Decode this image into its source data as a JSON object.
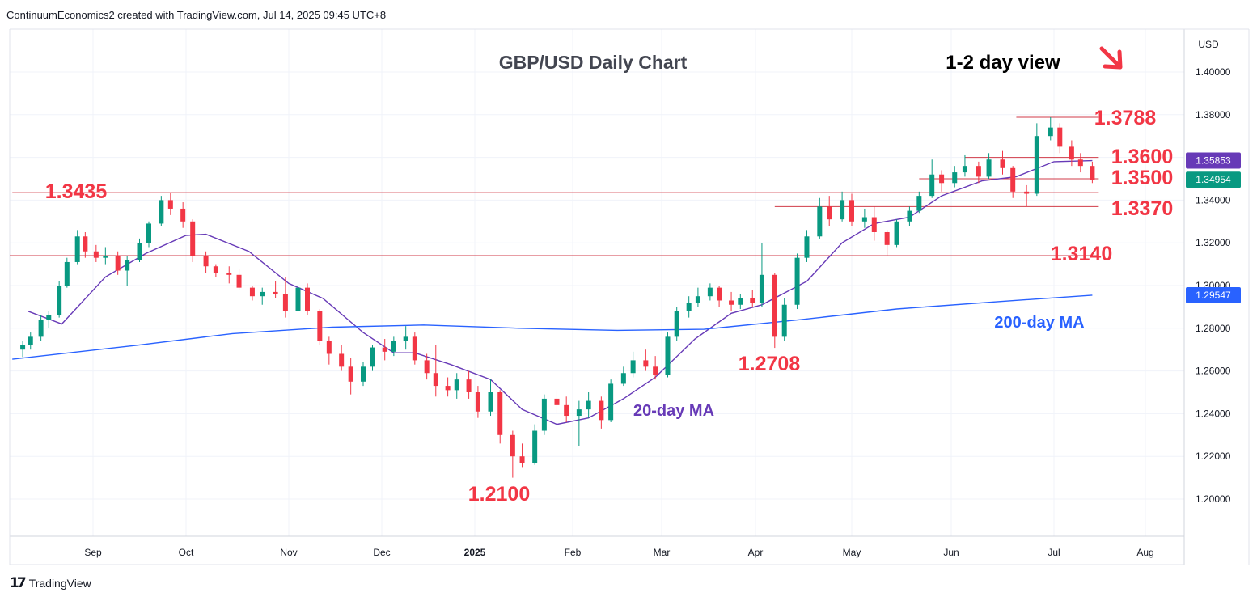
{
  "header": {
    "credit": "ContinuumEconomics2 created with TradingView.com, Jul 14, 2025 09:45 UTC+8"
  },
  "footer": {
    "brand": "TradingView"
  },
  "colors": {
    "up": "#089981",
    "down": "#f23645",
    "ma20": "#673ab7",
    "ma200": "#2962ff",
    "level_text": "#f23645",
    "grid": "#f0f3fa",
    "axis_text": "#131722"
  },
  "chart_data": {
    "type": "candlestick",
    "title": "GBP/USD Daily Chart",
    "subtitle": "1-2 day view",
    "view_arrow": "down-right-arrow",
    "currency_label": "USD",
    "ylim": [
      1.18,
      1.42
    ],
    "y_ticks": [
      "1.20000",
      "1.22000",
      "1.24000",
      "1.26000",
      "1.28000",
      "1.30000",
      "1.32000",
      "1.34000",
      "1.36000",
      "1.38000",
      "1.40000"
    ],
    "x_ticks": [
      {
        "label": "Sep",
        "date": "2024-09-01",
        "bold": false
      },
      {
        "label": "Oct",
        "date": "2024-10-01",
        "bold": false
      },
      {
        "label": "Nov",
        "date": "2024-11-01",
        "bold": false
      },
      {
        "label": "Dec",
        "date": "2024-12-01",
        "bold": false
      },
      {
        "label": "2025",
        "date": "2025-01-01",
        "bold": true
      },
      {
        "label": "Feb",
        "date": "2025-02-01",
        "bold": false
      },
      {
        "label": "Mar",
        "date": "2025-03-01",
        "bold": false
      },
      {
        "label": "Apr",
        "date": "2025-04-01",
        "bold": false
      },
      {
        "label": "May",
        "date": "2025-05-01",
        "bold": false
      },
      {
        "label": "Jun",
        "date": "2025-06-01",
        "bold": false
      },
      {
        "label": "Jul",
        "date": "2025-07-01",
        "bold": false
      },
      {
        "label": "Aug",
        "date": "2025-08-01",
        "bold": false
      }
    ],
    "price_tags": [
      {
        "label": "1.35853",
        "value": 1.35853,
        "color": "#673ab7"
      },
      {
        "label": "1.34954",
        "value": 1.34954,
        "color": "#089981"
      },
      {
        "label": "1.29547",
        "value": 1.29547,
        "color": "#2962ff"
      }
    ],
    "levels": [
      {
        "label": "1.3788",
        "value": 1.3788,
        "from": "2025-06-20",
        "to": "2025-07-14"
      },
      {
        "label": "1.3600",
        "value": 1.36,
        "from": "2025-06-05",
        "to": "2025-07-14"
      },
      {
        "label": "1.3500",
        "value": 1.35,
        "from": "2025-05-22",
        "to": "2025-07-14"
      },
      {
        "label": "1.3435",
        "value": 1.3435,
        "from": "2024-08-01",
        "to": "2025-07-14"
      },
      {
        "label": "1.3370",
        "value": 1.337,
        "from": "2025-04-07",
        "to": "2025-07-14"
      },
      {
        "label": "1.3140",
        "value": 1.314,
        "from": "2024-07-31",
        "to": "2025-07-14"
      }
    ],
    "annotations": [
      {
        "text": "1.3788",
        "kind": "level"
      },
      {
        "text": "1.3600",
        "kind": "level"
      },
      {
        "text": "1.3500",
        "kind": "level"
      },
      {
        "text": "1.3435",
        "kind": "level"
      },
      {
        "text": "1.3370",
        "kind": "level"
      },
      {
        "text": "1.3140",
        "kind": "level"
      },
      {
        "text": "1.2708",
        "kind": "low"
      },
      {
        "text": "1.2100",
        "kind": "low"
      },
      {
        "text": "20-day MA",
        "kind": "ma20"
      },
      {
        "text": "200-day MA",
        "kind": "ma200"
      }
    ],
    "series": [
      {
        "name": "20-day MA",
        "type": "line",
        "points": [
          [
            "2024-08-07",
            1.288
          ],
          [
            "2024-08-20",
            1.282
          ],
          [
            "2024-09-05",
            1.304
          ],
          [
            "2024-09-18",
            1.315
          ],
          [
            "2024-10-01",
            1.3235
          ],
          [
            "2024-10-07",
            1.324
          ],
          [
            "2024-10-20",
            1.316
          ],
          [
            "2024-11-01",
            1.301
          ],
          [
            "2024-11-12",
            1.294
          ],
          [
            "2024-11-25",
            1.278
          ],
          [
            "2024-12-05",
            1.2685
          ],
          [
            "2024-12-12",
            1.2685
          ],
          [
            "2024-12-24",
            1.263
          ],
          [
            "2025-01-06",
            1.256
          ],
          [
            "2025-01-16",
            1.242
          ],
          [
            "2025-01-27",
            1.235
          ],
          [
            "2025-02-06",
            1.238
          ],
          [
            "2025-02-17",
            1.247
          ],
          [
            "2025-02-27",
            1.257
          ],
          [
            "2025-03-12",
            1.275
          ],
          [
            "2025-03-24",
            1.287
          ],
          [
            "2025-04-03",
            1.291
          ],
          [
            "2025-04-17",
            1.302
          ],
          [
            "2025-04-28",
            1.32
          ],
          [
            "2025-05-08",
            1.329
          ],
          [
            "2025-05-19",
            1.332
          ],
          [
            "2025-05-29",
            1.342
          ],
          [
            "2025-06-10",
            1.349
          ],
          [
            "2025-06-20",
            1.351
          ],
          [
            "2025-07-01",
            1.358
          ],
          [
            "2025-07-14",
            1.3585
          ]
        ]
      },
      {
        "name": "200-day MA",
        "type": "line",
        "points": [
          [
            "2024-08-01",
            1.2655
          ],
          [
            "2024-09-15",
            1.272
          ],
          [
            "2024-10-15",
            1.2775
          ],
          [
            "2024-11-15",
            1.2805
          ],
          [
            "2024-12-15",
            1.2815
          ],
          [
            "2025-01-15",
            1.28
          ],
          [
            "2025-02-15",
            1.279
          ],
          [
            "2025-03-15",
            1.2795
          ],
          [
            "2025-04-15",
            1.284
          ],
          [
            "2025-05-15",
            1.289
          ],
          [
            "2025-06-15",
            1.2925
          ],
          [
            "2025-07-14",
            1.2955
          ]
        ]
      },
      {
        "name": "",
        "type": "candles",
        "ohlc": [
          [
            "2024-08-05",
            1.27,
            1.274,
            1.2665,
            1.272
          ],
          [
            "2024-08-08",
            1.272,
            1.278,
            1.27,
            1.276
          ],
          [
            "2024-08-12",
            1.276,
            1.286,
            1.274,
            1.284
          ],
          [
            "2024-08-15",
            1.284,
            1.288,
            1.28,
            1.286
          ],
          [
            "2024-08-19",
            1.286,
            1.302,
            1.285,
            1.3
          ],
          [
            "2024-08-22",
            1.3,
            1.313,
            1.299,
            1.311
          ],
          [
            "2024-08-26",
            1.311,
            1.326,
            1.31,
            1.323
          ],
          [
            "2024-08-29",
            1.323,
            1.325,
            1.313,
            1.316
          ],
          [
            "2024-09-02",
            1.316,
            1.319,
            1.311,
            1.313
          ],
          [
            "2024-09-05",
            1.313,
            1.318,
            1.31,
            1.314
          ],
          [
            "2024-09-09",
            1.314,
            1.316,
            1.305,
            1.307
          ],
          [
            "2024-09-12",
            1.307,
            1.314,
            1.3,
            1.312
          ],
          [
            "2024-09-16",
            1.312,
            1.322,
            1.311,
            1.32
          ],
          [
            "2024-09-19",
            1.32,
            1.33,
            1.318,
            1.329
          ],
          [
            "2024-09-23",
            1.329,
            1.342,
            1.328,
            1.34
          ],
          [
            "2024-09-26",
            1.34,
            1.3435,
            1.333,
            1.336
          ],
          [
            "2024-09-30",
            1.336,
            1.339,
            1.327,
            1.33
          ],
          [
            "2024-10-03",
            1.33,
            1.331,
            1.311,
            1.314
          ],
          [
            "2024-10-07",
            1.314,
            1.316,
            1.306,
            1.309
          ],
          [
            "2024-10-10",
            1.309,
            1.31,
            1.304,
            1.306
          ],
          [
            "2024-10-14",
            1.306,
            1.309,
            1.301,
            1.305
          ],
          [
            "2024-10-17",
            1.305,
            1.308,
            1.298,
            1.299
          ],
          [
            "2024-10-21",
            1.299,
            1.3,
            1.293,
            1.295
          ],
          [
            "2024-10-24",
            1.295,
            1.299,
            1.291,
            1.297
          ],
          [
            "2024-10-28",
            1.297,
            1.302,
            1.294,
            1.296
          ],
          [
            "2024-10-31",
            1.296,
            1.304,
            1.285,
            1.288
          ],
          [
            "2024-11-04",
            1.288,
            1.3,
            1.286,
            1.299
          ],
          [
            "2024-11-07",
            1.299,
            1.301,
            1.286,
            1.288
          ],
          [
            "2024-11-11",
            1.288,
            1.289,
            1.272,
            1.274
          ],
          [
            "2024-11-14",
            1.274,
            1.276,
            1.263,
            1.268
          ],
          [
            "2024-11-18",
            1.268,
            1.272,
            1.26,
            1.262
          ],
          [
            "2024-11-21",
            1.262,
            1.266,
            1.249,
            1.255
          ],
          [
            "2024-11-25",
            1.255,
            1.264,
            1.253,
            1.262
          ],
          [
            "2024-11-28",
            1.262,
            1.272,
            1.26,
            1.271
          ],
          [
            "2024-12-02",
            1.271,
            1.275,
            1.265,
            1.269
          ],
          [
            "2024-12-05",
            1.269,
            1.276,
            1.267,
            1.274
          ],
          [
            "2024-12-09",
            1.274,
            1.281,
            1.27,
            1.276
          ],
          [
            "2024-12-12",
            1.276,
            1.278,
            1.263,
            1.265
          ],
          [
            "2024-12-16",
            1.265,
            1.268,
            1.256,
            1.259
          ],
          [
            "2024-12-19",
            1.259,
            1.272,
            1.248,
            1.253
          ],
          [
            "2024-12-23",
            1.253,
            1.257,
            1.248,
            1.251
          ],
          [
            "2024-12-26",
            1.251,
            1.259,
            1.247,
            1.256
          ],
          [
            "2024-12-30",
            1.256,
            1.26,
            1.247,
            1.25
          ],
          [
            "2025-01-02",
            1.25,
            1.253,
            1.238,
            1.241
          ],
          [
            "2025-01-06",
            1.241,
            1.256,
            1.239,
            1.25
          ],
          [
            "2025-01-09",
            1.25,
            1.251,
            1.226,
            1.23
          ],
          [
            "2025-01-13",
            1.23,
            1.232,
            1.21,
            1.22
          ],
          [
            "2025-01-16",
            1.22,
            1.226,
            1.215,
            1.217
          ],
          [
            "2025-01-20",
            1.217,
            1.235,
            1.216,
            1.232
          ],
          [
            "2025-01-23",
            1.232,
            1.249,
            1.23,
            1.247
          ],
          [
            "2025-01-27",
            1.247,
            1.251,
            1.24,
            1.244
          ],
          [
            "2025-01-30",
            1.244,
            1.248,
            1.236,
            1.239
          ],
          [
            "2025-02-03",
            1.239,
            1.246,
            1.225,
            1.242
          ],
          [
            "2025-02-06",
            1.242,
            1.25,
            1.238,
            1.246
          ],
          [
            "2025-02-10",
            1.246,
            1.248,
            1.233,
            1.237
          ],
          [
            "2025-02-13",
            1.237,
            1.256,
            1.236,
            1.254
          ],
          [
            "2025-02-17",
            1.254,
            1.262,
            1.253,
            1.259
          ],
          [
            "2025-02-20",
            1.259,
            1.269,
            1.257,
            1.265
          ],
          [
            "2025-02-24",
            1.265,
            1.27,
            1.26,
            1.262
          ],
          [
            "2025-02-27",
            1.262,
            1.267,
            1.256,
            1.258
          ],
          [
            "2025-03-03",
            1.258,
            1.278,
            1.257,
            1.276
          ],
          [
            "2025-03-06",
            1.276,
            1.29,
            1.274,
            1.288
          ],
          [
            "2025-03-10",
            1.288,
            1.295,
            1.285,
            1.292
          ],
          [
            "2025-03-13",
            1.292,
            1.299,
            1.29,
            1.295
          ],
          [
            "2025-03-17",
            1.295,
            1.301,
            1.293,
            1.299
          ],
          [
            "2025-03-20",
            1.299,
            1.3,
            1.29,
            1.293
          ],
          [
            "2025-03-24",
            1.293,
            1.297,
            1.288,
            1.291
          ],
          [
            "2025-03-27",
            1.291,
            1.296,
            1.289,
            1.294
          ],
          [
            "2025-03-31",
            1.294,
            1.298,
            1.29,
            1.292
          ],
          [
            "2025-04-03",
            1.292,
            1.32,
            1.29,
            1.305
          ],
          [
            "2025-04-07",
            1.305,
            1.306,
            1.2708,
            1.276
          ],
          [
            "2025-04-10",
            1.276,
            1.294,
            1.274,
            1.291
          ],
          [
            "2025-04-14",
            1.291,
            1.315,
            1.289,
            1.313
          ],
          [
            "2025-04-17",
            1.313,
            1.326,
            1.311,
            1.323
          ],
          [
            "2025-04-21",
            1.323,
            1.341,
            1.322,
            1.337
          ],
          [
            "2025-04-24",
            1.337,
            1.342,
            1.328,
            1.331
          ],
          [
            "2025-04-28",
            1.331,
            1.344,
            1.33,
            1.34
          ],
          [
            "2025-05-01",
            1.34,
            1.343,
            1.328,
            1.33
          ],
          [
            "2025-05-05",
            1.33,
            1.336,
            1.327,
            1.332
          ],
          [
            "2025-05-08",
            1.332,
            1.337,
            1.321,
            1.325
          ],
          [
            "2025-05-12",
            1.325,
            1.326,
            1.314,
            1.319
          ],
          [
            "2025-05-15",
            1.319,
            1.331,
            1.318,
            1.33
          ],
          [
            "2025-05-19",
            1.33,
            1.337,
            1.328,
            1.335
          ],
          [
            "2025-05-22",
            1.335,
            1.344,
            1.334,
            1.342
          ],
          [
            "2025-05-26",
            1.342,
            1.359,
            1.341,
            1.352
          ],
          [
            "2025-05-29",
            1.352,
            1.354,
            1.344,
            1.348
          ],
          [
            "2025-06-02",
            1.348,
            1.356,
            1.346,
            1.353
          ],
          [
            "2025-06-05",
            1.353,
            1.361,
            1.351,
            1.356
          ],
          [
            "2025-06-09",
            1.356,
            1.358,
            1.348,
            1.351
          ],
          [
            "2025-06-12",
            1.351,
            1.362,
            1.35,
            1.359
          ],
          [
            "2025-06-16",
            1.359,
            1.363,
            1.352,
            1.355
          ],
          [
            "2025-06-19",
            1.355,
            1.356,
            1.341,
            1.344
          ],
          [
            "2025-06-23",
            1.344,
            1.347,
            1.337,
            1.343
          ],
          [
            "2025-06-26",
            1.343,
            1.376,
            1.342,
            1.37
          ],
          [
            "2025-06-30",
            1.37,
            1.3788,
            1.368,
            1.374
          ],
          [
            "2025-07-03",
            1.374,
            1.376,
            1.362,
            1.365
          ],
          [
            "2025-07-07",
            1.365,
            1.368,
            1.356,
            1.359
          ],
          [
            "2025-07-10",
            1.359,
            1.362,
            1.353,
            1.356
          ],
          [
            "2025-07-14",
            1.356,
            1.358,
            1.348,
            1.3495
          ]
        ]
      }
    ]
  }
}
